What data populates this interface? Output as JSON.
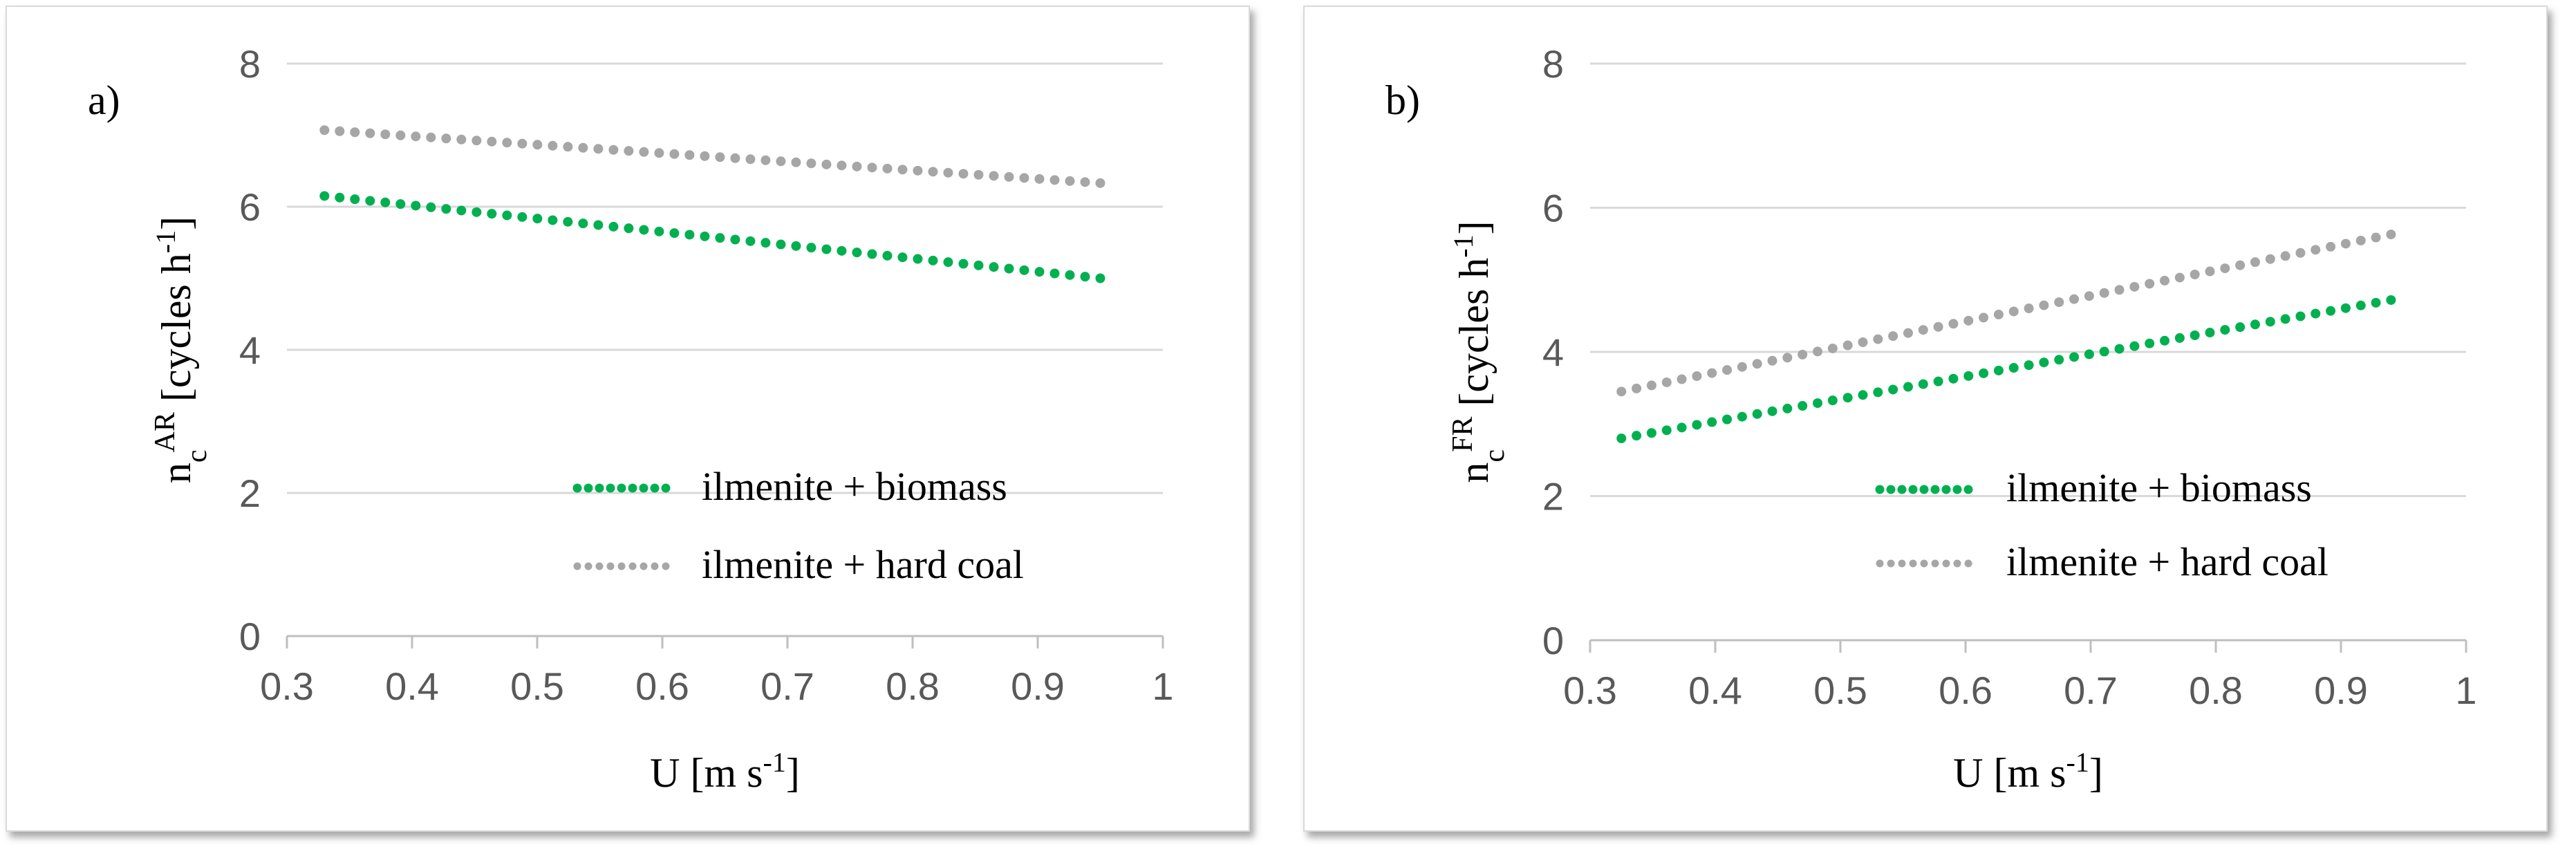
{
  "chart_data": [
    {
      "type": "line",
      "panel_label": "a)",
      "xlabel": {
        "main": "U [m s",
        "sup": "-1",
        "end": "]"
      },
      "ylabel": {
        "main": "n",
        "sub": "c",
        "sup": "AR",
        "rest": " [cycles h",
        "sup2": "-1",
        "end": "]"
      },
      "xlim": [
        0.3,
        1
      ],
      "ylim": [
        0,
        8
      ],
      "xticks": [
        0.3,
        0.4,
        0.5,
        0.6,
        0.7,
        0.8,
        0.9,
        1
      ],
      "xtick_labels": [
        "0.3",
        "0.4",
        "0.5",
        "0.6",
        "0.7",
        "0.8",
        "0.9",
        "1"
      ],
      "yticks": [
        0,
        2,
        4,
        6,
        8
      ],
      "ytick_labels": [
        "0",
        "2",
        "4",
        "6",
        "8"
      ],
      "legend_position": "bottom-right",
      "series": [
        {
          "name": "ilmenite + biomass",
          "color": "#00b050",
          "x_range": [
            0.33,
            0.95
          ],
          "y_range": [
            6.15,
            5.0
          ]
        },
        {
          "name": "ilmenite + hard coal",
          "color": "#a6a6a6",
          "x_range": [
            0.33,
            0.95
          ],
          "y_range": [
            7.07,
            6.33
          ]
        }
      ]
    },
    {
      "type": "line",
      "panel_label": "b)",
      "xlabel": {
        "main": "U [m s",
        "sup": "-1",
        "end": "]"
      },
      "ylabel": {
        "main": "n",
        "sub": "c",
        "sup": "FR",
        "rest": " [cycles h",
        "sup2": "-1",
        "end": "]"
      },
      "xlim": [
        0.3,
        1
      ],
      "ylim": [
        0,
        8
      ],
      "xticks": [
        0.3,
        0.4,
        0.5,
        0.6,
        0.7,
        0.8,
        0.9,
        1
      ],
      "xtick_labels": [
        "0.3",
        "0.4",
        "0.5",
        "0.6",
        "0.7",
        "0.8",
        "0.9",
        "1"
      ],
      "yticks": [
        0,
        2,
        4,
        6,
        8
      ],
      "ytick_labels": [
        "0",
        "2",
        "4",
        "6",
        "8"
      ],
      "legend_position": "bottom-right",
      "series": [
        {
          "name": "ilmenite + biomass",
          "color": "#00b050",
          "x_range": [
            0.325,
            0.94
          ],
          "y_range": [
            2.8,
            4.72
          ]
        },
        {
          "name": "ilmenite + hard coal",
          "color": "#a6a6a6",
          "x_range": [
            0.325,
            0.94
          ],
          "y_range": [
            3.45,
            5.63
          ]
        }
      ]
    }
  ]
}
